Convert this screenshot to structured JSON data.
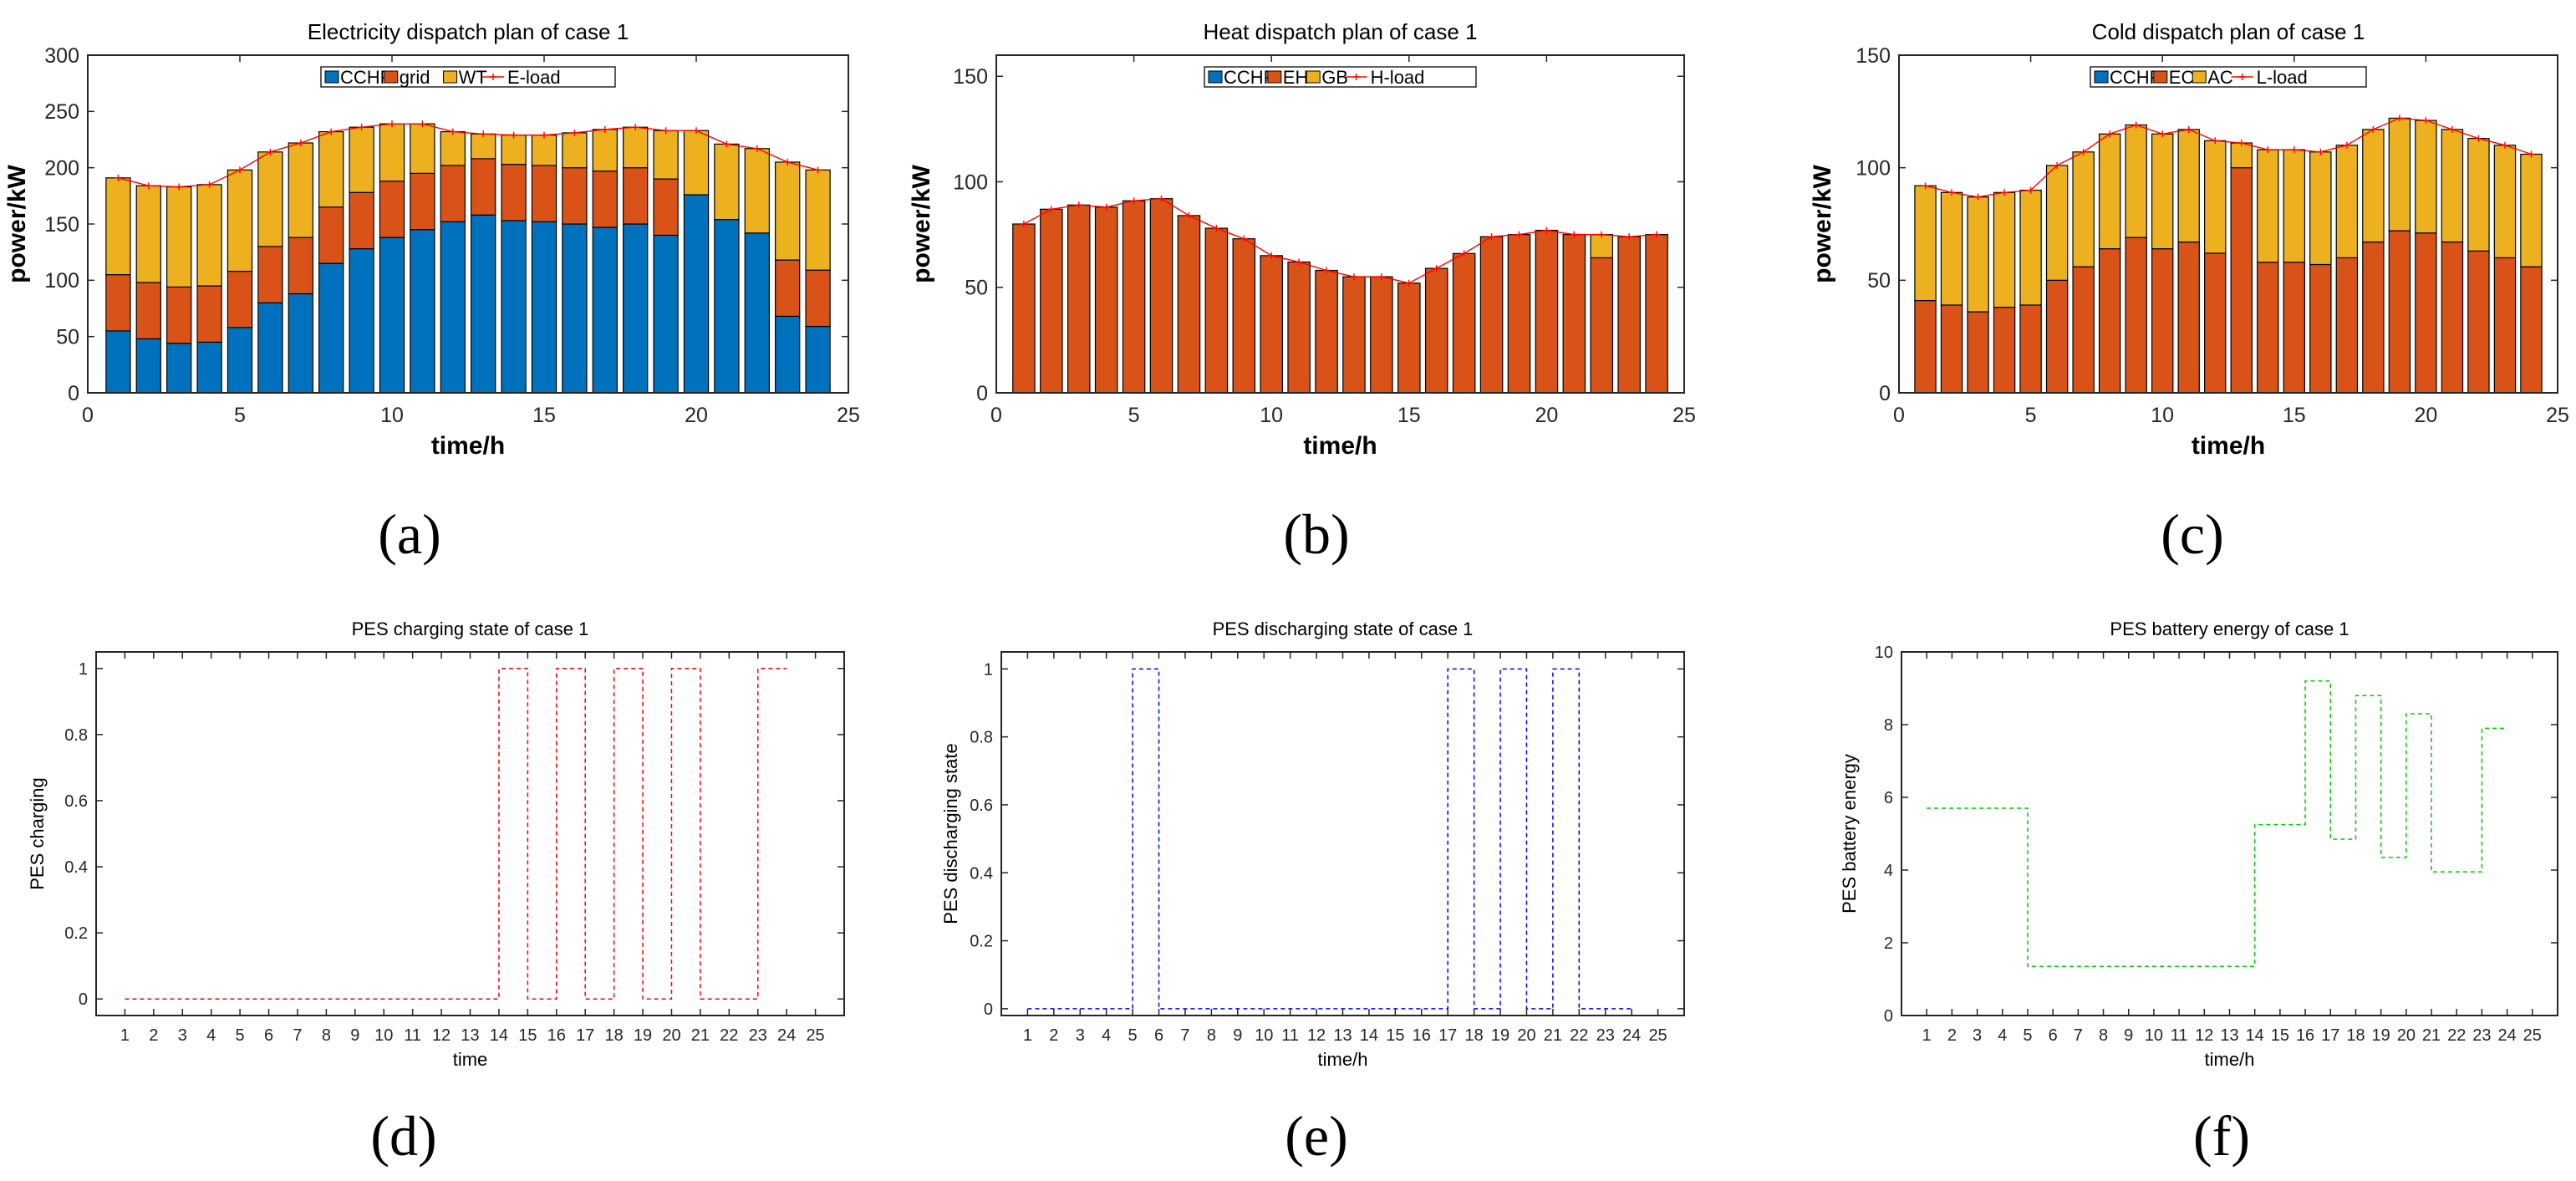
{
  "colors": {
    "cchp": "#0072BD",
    "red": "#D95319",
    "yellow": "#EDB120",
    "load": "#FF0000",
    "green": "#00CC00",
    "blue": "#0000FF"
  },
  "panels": {
    "a": {
      "letter": "(a)"
    },
    "b": {
      "letter": "(b)"
    },
    "c": {
      "letter": "(c)"
    },
    "d": {
      "letter": "(d)"
    },
    "e": {
      "letter": "(e)"
    },
    "f": {
      "letter": "(f)"
    }
  },
  "chart_data": [
    {
      "id": "a",
      "type": "bar",
      "stacked": true,
      "title": "Electricity dispatch plan of case 1",
      "xlabel": "time/h",
      "ylabel": "power/kW",
      "xlim": [
        0,
        25
      ],
      "ylim": [
        0,
        300
      ],
      "xticks": [
        0,
        5,
        10,
        15,
        20,
        25
      ],
      "yticks": [
        0,
        50,
        100,
        150,
        200,
        250,
        300
      ],
      "x": [
        1,
        2,
        3,
        4,
        5,
        6,
        7,
        8,
        9,
        10,
        11,
        12,
        13,
        14,
        15,
        16,
        17,
        18,
        19,
        20,
        21,
        22,
        23,
        24
      ],
      "series": [
        {
          "name": "CCHP",
          "color": "#0072BD",
          "values": [
            55,
            48,
            44,
            45,
            58,
            80,
            88,
            115,
            128,
            138,
            145,
            152,
            158,
            153,
            152,
            150,
            147,
            150,
            140,
            176,
            154,
            142,
            68,
            59
          ]
        },
        {
          "name": "grid",
          "color": "#D95319",
          "values": [
            50,
            50,
            50,
            50,
            50,
            50,
            50,
            50,
            50,
            50,
            50,
            50,
            50,
            50,
            50,
            50,
            50,
            50,
            50,
            0,
            0,
            0,
            50,
            50
          ]
        },
        {
          "name": "WT",
          "color": "#EDB120",
          "values": [
            86,
            86,
            89,
            90,
            90,
            84,
            84,
            67,
            58,
            51,
            44,
            30,
            22,
            26,
            27,
            31,
            37,
            36,
            43,
            57,
            67,
            75,
            87,
            89
          ]
        }
      ],
      "load": {
        "name": "E-load",
        "color": "#FF0000",
        "values": [
          191,
          184,
          183,
          185,
          198,
          214,
          222,
          232,
          236,
          239,
          239,
          232,
          230,
          229,
          229,
          231,
          234,
          236,
          233,
          233,
          221,
          217,
          205,
          198
        ]
      },
      "legend": "top-center"
    },
    {
      "id": "b",
      "type": "bar",
      "stacked": true,
      "title": "Heat dispatch plan of case 1",
      "xlabel": "time/h",
      "ylabel": "power/kW",
      "xlim": [
        0,
        25
      ],
      "ylim": [
        0,
        160
      ],
      "xticks": [
        0,
        5,
        10,
        15,
        20,
        25
      ],
      "yticks": [
        0,
        50,
        100,
        150
      ],
      "x": [
        1,
        2,
        3,
        4,
        5,
        6,
        7,
        8,
        9,
        10,
        11,
        12,
        13,
        14,
        15,
        16,
        17,
        18,
        19,
        20,
        21,
        22,
        23,
        24
      ],
      "series": [
        {
          "name": "CCHP",
          "color": "#0072BD",
          "values": [
            0,
            0,
            0,
            0,
            0,
            0,
            0,
            0,
            0,
            0,
            0,
            0,
            0,
            0,
            0,
            0,
            0,
            0,
            0,
            0,
            0,
            0,
            0,
            0
          ]
        },
        {
          "name": "EH",
          "color": "#D95319",
          "values": [
            80,
            87,
            89,
            88,
            91,
            92,
            84,
            78,
            73,
            65,
            62,
            58,
            55,
            55,
            52,
            59,
            66,
            74,
            75,
            77,
            75,
            64,
            74,
            75
          ]
        },
        {
          "name": "GB",
          "color": "#EDB120",
          "values": [
            0,
            0,
            0,
            0,
            0,
            0,
            0,
            0,
            0,
            0,
            0,
            0,
            0,
            0,
            0,
            0,
            0,
            0,
            0,
            0,
            0,
            11,
            0,
            0
          ]
        }
      ],
      "load": {
        "name": "H-load",
        "color": "#FF0000",
        "values": [
          80,
          87,
          89,
          88,
          91,
          92,
          84,
          78,
          73,
          65,
          62,
          58,
          55,
          55,
          52,
          59,
          66,
          74,
          75,
          77,
          75,
          75,
          74,
          75
        ]
      },
      "legend": "top-center"
    },
    {
      "id": "c",
      "type": "bar",
      "stacked": true,
      "title": "Cold dispatch plan of case 1",
      "xlabel": "time/h",
      "ylabel": "power/kW",
      "xlim": [
        0,
        25
      ],
      "ylim": [
        0,
        150
      ],
      "xticks": [
        0,
        5,
        10,
        15,
        20,
        25
      ],
      "yticks": [
        0,
        50,
        100,
        150
      ],
      "x": [
        1,
        2,
        3,
        4,
        5,
        6,
        7,
        8,
        9,
        10,
        11,
        12,
        13,
        14,
        15,
        16,
        17,
        18,
        19,
        20,
        21,
        22,
        23,
        24
      ],
      "series": [
        {
          "name": "CCHP",
          "color": "#0072BD",
          "values": [
            0,
            0,
            0,
            0,
            0,
            0,
            0,
            0,
            0,
            0,
            0,
            0,
            0,
            0,
            0,
            0,
            0,
            0,
            0,
            0,
            0,
            0,
            0,
            0
          ]
        },
        {
          "name": "EC",
          "color": "#D95319",
          "values": [
            41,
            39,
            36,
            38,
            39,
            50,
            56,
            64,
            69,
            64,
            67,
            62,
            100,
            58,
            58,
            57,
            60,
            67,
            72,
            71,
            67,
            63,
            60,
            56
          ]
        },
        {
          "name": "AC",
          "color": "#EDB120",
          "values": [
            51,
            50,
            51,
            51,
            51,
            51,
            51,
            51,
            50,
            51,
            50,
            50,
            11,
            50,
            50,
            50,
            50,
            50,
            50,
            50,
            50,
            50,
            50,
            50
          ]
        }
      ],
      "load": {
        "name": "L-load",
        "color": "#FF0000",
        "values": [
          92,
          89,
          87,
          89,
          90,
          101,
          107,
          115,
          119,
          115,
          117,
          112,
          111,
          108,
          108,
          107,
          110,
          117,
          122,
          121,
          117,
          113,
          110,
          106
        ]
      },
      "legend": "top-center"
    },
    {
      "id": "d",
      "type": "line",
      "step": true,
      "title": "PES charging state of case 1",
      "xlabel": "time",
      "ylabel": "PES charging",
      "xlim": [
        0,
        26
      ],
      "ylim": [
        -0.05,
        1.05
      ],
      "xticks": [
        1,
        2,
        3,
        4,
        5,
        6,
        7,
        8,
        9,
        10,
        11,
        12,
        13,
        14,
        15,
        16,
        17,
        18,
        19,
        20,
        21,
        22,
        23,
        24,
        25
      ],
      "yticks": [
        0,
        0.2,
        0.4,
        0.6,
        0.8,
        1
      ],
      "ytick_labels": [
        "0",
        "0.2",
        "0.4",
        "0.6",
        "0.8",
        "1"
      ],
      "series": [
        {
          "name": "charging",
          "color": "#FF0000",
          "dash": true,
          "values": [
            0,
            0,
            0,
            0,
            0,
            0,
            0,
            0,
            0,
            0,
            0,
            0,
            0,
            1,
            0,
            1,
            0,
            1,
            0,
            1,
            0,
            0,
            1,
            1
          ]
        }
      ]
    },
    {
      "id": "e",
      "type": "line",
      "step": true,
      "title": "PES discharging state of case 1",
      "xlabel": "time/h",
      "ylabel": "PES discharging state",
      "xlim": [
        0,
        26
      ],
      "ylim": [
        -0.02,
        1.05
      ],
      "xticks": [
        1,
        2,
        3,
        4,
        5,
        6,
        7,
        8,
        9,
        10,
        11,
        12,
        13,
        14,
        15,
        16,
        17,
        18,
        19,
        20,
        21,
        22,
        23,
        24,
        25
      ],
      "yticks": [
        0,
        0.2,
        0.4,
        0.6,
        0.8,
        1
      ],
      "ytick_labels": [
        "0",
        "0.2",
        "0.4",
        "0.6",
        "0.8",
        "1"
      ],
      "series": [
        {
          "name": "discharging",
          "color": "#0000FF",
          "dash": true,
          "values": [
            0,
            0,
            0,
            0,
            1,
            0,
            0,
            0,
            0,
            0,
            0,
            0,
            0,
            0,
            0,
            0,
            1,
            0,
            1,
            0,
            1,
            0,
            0,
            0
          ]
        }
      ]
    },
    {
      "id": "f",
      "type": "line",
      "step": true,
      "title": "PES battery energy of case 1",
      "xlabel": "time/h",
      "ylabel": "PES battery energy",
      "xlim": [
        0,
        26
      ],
      "ylim": [
        0,
        10
      ],
      "xticks": [
        1,
        2,
        3,
        4,
        5,
        6,
        7,
        8,
        9,
        10,
        11,
        12,
        13,
        14,
        15,
        16,
        17,
        18,
        19,
        20,
        21,
        22,
        23,
        24,
        25
      ],
      "yticks": [
        0,
        2,
        4,
        6,
        8,
        10
      ],
      "ytick_labels": [
        "0",
        "2",
        "4",
        "6",
        "8",
        "10"
      ],
      "series": [
        {
          "name": "energy",
          "color": "#00CC00",
          "dash": true,
          "values": [
            5.7,
            5.7,
            5.7,
            5.7,
            1.35,
            1.35,
            1.35,
            1.35,
            1.35,
            1.35,
            1.35,
            1.35,
            1.35,
            5.25,
            5.25,
            9.2,
            4.85,
            8.8,
            4.35,
            8.3,
            3.95,
            3.95,
            7.9,
            7.9
          ]
        }
      ]
    }
  ]
}
